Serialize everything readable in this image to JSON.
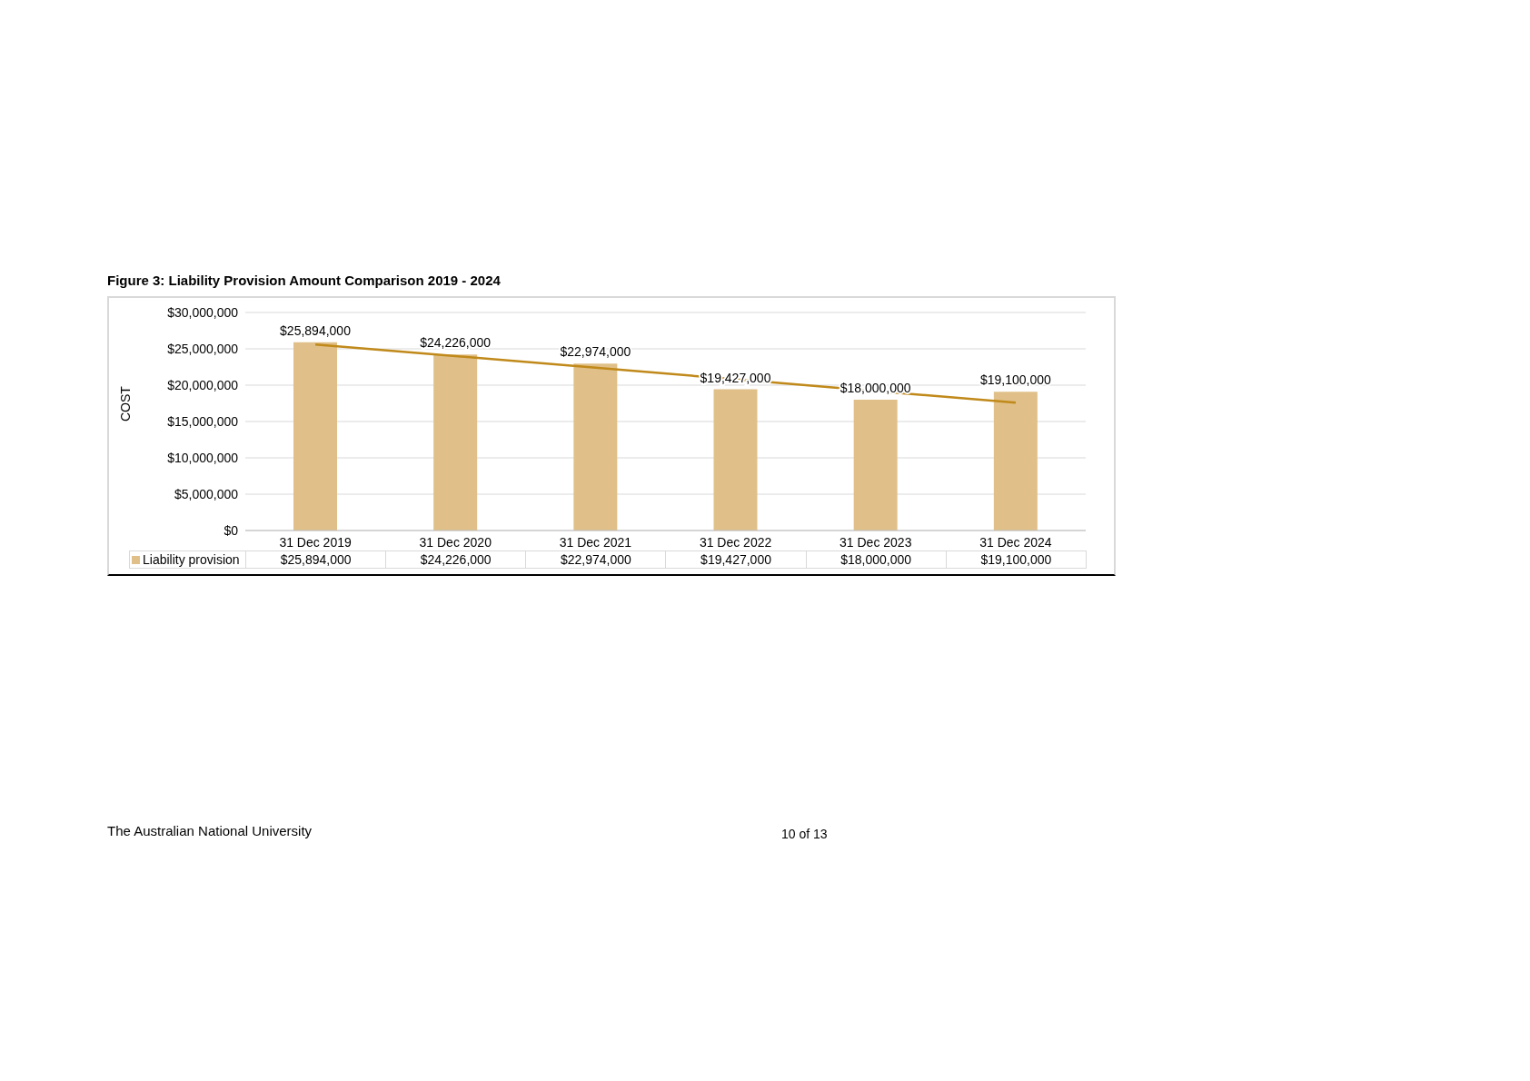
{
  "chart_data": {
    "type": "bar",
    "title": "Figure 3: Liability Provision Amount Comparison 2019 - 2024",
    "ylabel": "COST",
    "categories": [
      "31 Dec 2019",
      "31 Dec 2020",
      "31 Dec 2021",
      "31 Dec 2022",
      "31 Dec 2023",
      "31 Dec 2024"
    ],
    "series": [
      {
        "name": "Liability provision",
        "color": "#e0c088",
        "values": [
          25894000,
          24226000,
          22974000,
          19427000,
          18000000,
          19100000
        ],
        "value_labels": [
          "$25,894,000",
          "$24,226,000",
          "$22,974,000",
          "$19,427,000",
          "$18,000,000",
          "$19,100,000"
        ]
      },
      {
        "type": "line",
        "color": "#c0891a",
        "values": [
          25600000,
          24000000,
          22400000,
          20800000,
          19200000,
          17600000
        ]
      }
    ],
    "ylim": [
      0,
      30000000
    ],
    "yticks": [
      {
        "value": 0,
        "label": "$0"
      },
      {
        "value": 5000000,
        "label": "$5,000,000"
      },
      {
        "value": 10000000,
        "label": "$10,000,000"
      },
      {
        "value": 15000000,
        "label": "$15,000,000"
      },
      {
        "value": 20000000,
        "label": "$20,000,000"
      },
      {
        "value": 25000000,
        "label": "$25,000,000"
      },
      {
        "value": 30000000,
        "label": "$30,000,000"
      }
    ],
    "grid": "y",
    "legend": "bottom left",
    "annotations": [
      "The Australian National University",
      "10 of 13"
    ]
  }
}
